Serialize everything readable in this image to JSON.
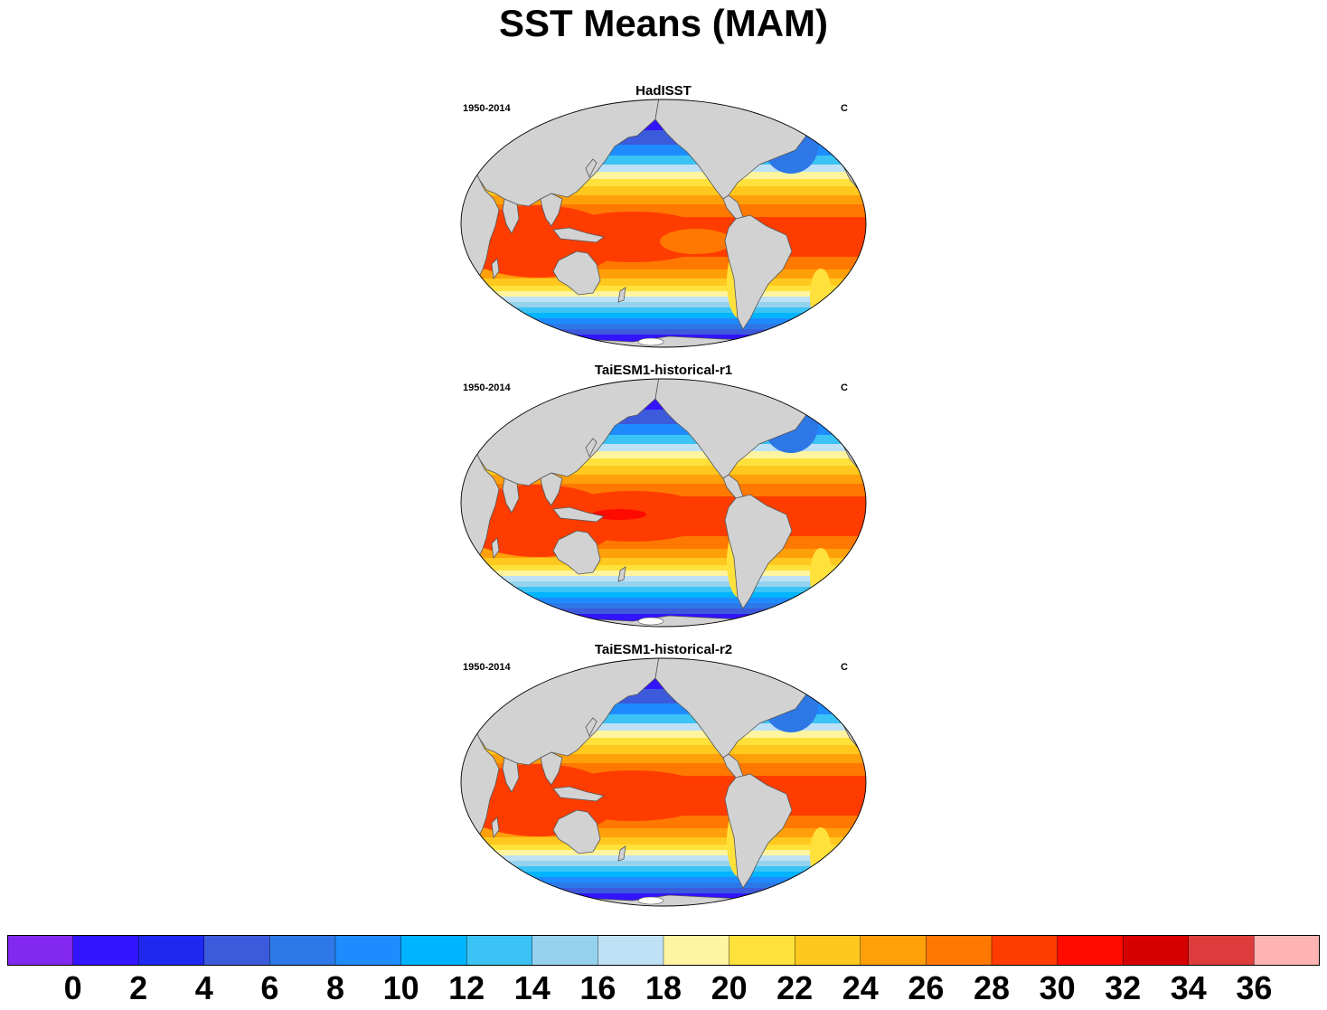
{
  "title": "SST Means (MAM)",
  "panels": [
    {
      "title": "HadISST",
      "left_label": "1950-2014",
      "right_label": "C",
      "variant": 0
    },
    {
      "title": "TaiESM1-historical-r1",
      "left_label": "1950-2014",
      "right_label": "C",
      "variant": 1
    },
    {
      "title": "TaiESM1-historical-r2",
      "left_label": "1950-2014",
      "right_label": "C",
      "variant": 2
    }
  ],
  "colorbar": {
    "colors": [
      "#8228f0",
      "#3214ff",
      "#1e28f0",
      "#3c5adc",
      "#2d78e6",
      "#1e8cff",
      "#00b4ff",
      "#3cc3f5",
      "#96d2ee",
      "#bee1f5",
      "#fff5a0",
      "#ffe13c",
      "#ffc81e",
      "#ffa00a",
      "#ff7800",
      "#ff3c00",
      "#ff0a00",
      "#d70000",
      "#dc3c3c",
      "#ffb4b4"
    ],
    "tick_labels": [
      "0",
      "2",
      "4",
      "6",
      "8",
      "10",
      "12",
      "14",
      "16",
      "18",
      "20",
      "22",
      "24",
      "26",
      "28",
      "30",
      "32",
      "34",
      "36"
    ]
  },
  "land_color": "#d2d2d2",
  "coast_color": "#555555"
}
